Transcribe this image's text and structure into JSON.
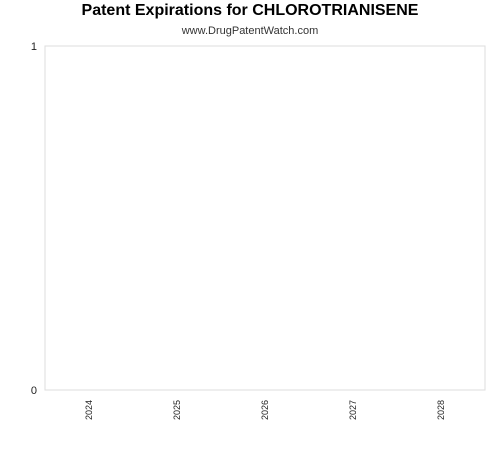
{
  "chart_data": {
    "type": "bar",
    "title": "Patent Expirations for CHLOROTRIANISENE",
    "subtitle": "www.DrugPatentWatch.com",
    "categories": [
      "2024",
      "2025",
      "2026",
      "2027",
      "2028"
    ],
    "series": [
      {
        "values": [
          0,
          0,
          0,
          0,
          0
        ]
      }
    ],
    "ylim": [
      0,
      1
    ],
    "yticks": [
      "0",
      "1"
    ],
    "grid": false,
    "colors": {
      "plot_border": "#dddddd",
      "text": "#222222"
    }
  }
}
